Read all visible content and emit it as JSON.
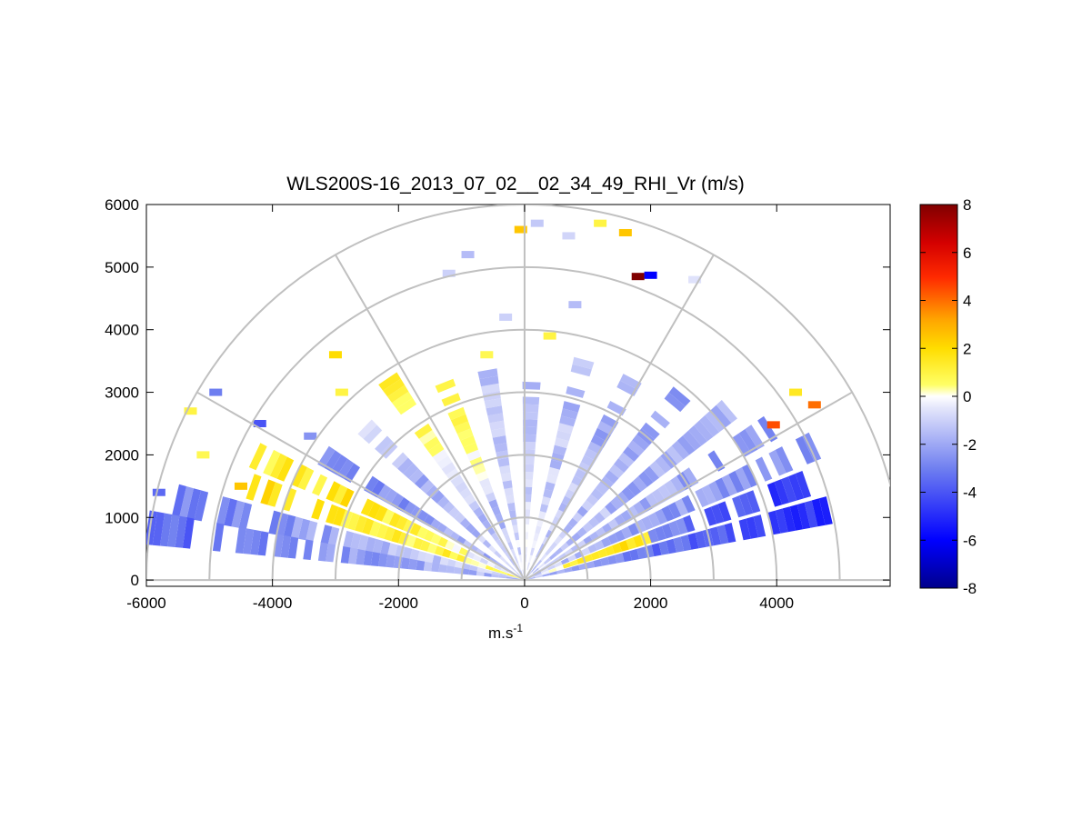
{
  "chart_data": {
    "type": "polar-rhi-heatmap",
    "title": "WLS200S-16_2013_07_02__02_34_49_RHI_Vr (m/s)",
    "xlabel": "m.s",
    "xlabel_superscript": "-1",
    "ylabel": "",
    "xlim": [
      -6000,
      5800
    ],
    "ylim": [
      -100,
      6000
    ],
    "x_ticks": [
      -6000,
      -4000,
      -2000,
      0,
      2000,
      4000
    ],
    "x_tick_labels": [
      "-6000",
      "-4000",
      "-2000",
      "0",
      "2000",
      "4000"
    ],
    "y_ticks": [
      0,
      1000,
      2000,
      3000,
      4000,
      5000,
      6000
    ],
    "y_tick_labels": [
      "0",
      "1000",
      "2000",
      "3000",
      "4000",
      "5000",
      "6000"
    ],
    "polar_grid": {
      "ring_radii": [
        1000,
        2000,
        3000,
        4000,
        5000,
        6000
      ],
      "spoke_angles_deg": [
        0,
        30,
        60,
        90,
        120,
        150,
        180
      ]
    },
    "colorbar": {
      "range": [
        -8,
        8
      ],
      "ticks": [
        -8,
        -6,
        -4,
        -2,
        0,
        2,
        4,
        6,
        8
      ],
      "tick_labels": [
        "-8",
        "-6",
        "-4",
        "-2",
        "0",
        "2",
        "4",
        "6",
        "8"
      ],
      "colors": [
        "#00008b",
        "#0000ff",
        "#6e7ef0",
        "#ffffff",
        "#ffff00",
        "#ffa500",
        "#ff0000",
        "#800000"
      ]
    },
    "beams": [
      {
        "angle_deg": 13,
        "r_start": 50,
        "r_end": 4900,
        "vr_profile": [
          -1.5,
          -3,
          -4,
          -5
        ]
      },
      {
        "angle_deg": 19,
        "r_start": 50,
        "r_end": 2100,
        "vr_profile": [
          -1,
          1,
          1.5,
          1.5
        ]
      },
      {
        "angle_deg": 19,
        "r_start": 2100,
        "r_end": 4800,
        "vr_profile": [
          -2.5,
          -3.5,
          -4.5,
          -4
        ]
      },
      {
        "angle_deg": 25,
        "r_start": 50,
        "r_end": 5200,
        "vr_profile": [
          -1,
          -2,
          -2.5,
          -3
        ]
      },
      {
        "angle_deg": 32,
        "r_start": 50,
        "r_end": 4500,
        "vr_profile": [
          -1,
          -1.5,
          -2,
          -2.5
        ]
      },
      {
        "angle_deg": 40,
        "r_start": 50,
        "r_end": 4200,
        "vr_profile": [
          -1,
          -1.5,
          -2,
          -2
        ]
      },
      {
        "angle_deg": 50,
        "r_start": 50,
        "r_end": 3900,
        "vr_profile": [
          -1,
          -1.5,
          -2,
          -2
        ]
      },
      {
        "angle_deg": 62,
        "r_start": 50,
        "r_end": 3700,
        "vr_profile": [
          -0.8,
          -1.2,
          -1.8,
          -2
        ]
      },
      {
        "angle_deg": 75,
        "r_start": 50,
        "r_end": 3600,
        "vr_profile": [
          -0.6,
          -1,
          -1.4,
          -1.5
        ]
      },
      {
        "angle_deg": 88,
        "r_start": 50,
        "r_end": 3400,
        "vr_profile": [
          -0.5,
          -0.8,
          -1,
          -1.2
        ]
      },
      {
        "angle_deg": 100,
        "r_start": 50,
        "r_end": 3300,
        "vr_profile": [
          -0.6,
          -1,
          -1.3,
          -1.5
        ]
      },
      {
        "angle_deg": 112,
        "r_start": 50,
        "r_end": 3400,
        "vr_profile": [
          -1,
          -1.5,
          0.6,
          0.8
        ]
      },
      {
        "angle_deg": 124,
        "r_start": 50,
        "r_end": 3800,
        "vr_profile": [
          -1,
          -1.5,
          0.8,
          1
        ]
      },
      {
        "angle_deg": 136,
        "r_start": 50,
        "r_end": 3500,
        "vr_profile": [
          -1,
          -1.5,
          -2,
          -1
        ]
      },
      {
        "angle_deg": 148,
        "r_start": 50,
        "r_end": 3700,
        "vr_profile": [
          -1.5,
          -2,
          -2.5,
          -3
        ]
      },
      {
        "angle_deg": 155,
        "r_start": 50,
        "r_end": 4700,
        "vr_profile": [
          -1,
          1,
          1.5,
          1
        ]
      },
      {
        "angle_deg": 161,
        "r_start": 50,
        "r_end": 4600,
        "vr_profile": [
          0.5,
          1,
          1.5,
          2
        ]
      },
      {
        "angle_deg": 167,
        "r_start": 50,
        "r_end": 6000,
        "vr_profile": [
          -1,
          -1.5,
          -2.5,
          -3
        ]
      },
      {
        "angle_deg": 172,
        "r_start": 50,
        "r_end": 6000,
        "vr_profile": [
          -1.5,
          -2,
          -3,
          -3.5
        ]
      }
    ],
    "scatter_cells": [
      {
        "x": -60,
        "y": 5600,
        "vr": 2.5
      },
      {
        "x": 1600,
        "y": 5550,
        "vr": 2.5
      },
      {
        "x": 1200,
        "y": 5700,
        "vr": 1.0
      },
      {
        "x": 1800,
        "y": 4850,
        "vr": 8.0
      },
      {
        "x": 2000,
        "y": 4870,
        "vr": -6.0
      },
      {
        "x": 4300,
        "y": 3000,
        "vr": 1.5
      },
      {
        "x": 4600,
        "y": 2800,
        "vr": 4.0
      },
      {
        "x": 3950,
        "y": 2480,
        "vr": 4.5
      },
      {
        "x": -3000,
        "y": 3600,
        "vr": 2.0
      },
      {
        "x": -2900,
        "y": 3000,
        "vr": 1.0
      },
      {
        "x": -4500,
        "y": 1500,
        "vr": 2.5
      },
      {
        "x": -5300,
        "y": 2700,
        "vr": 1.0
      },
      {
        "x": -5100,
        "y": 2000,
        "vr": 0.8
      },
      {
        "x": -600,
        "y": 3600,
        "vr": 0.8
      },
      {
        "x": 400,
        "y": 3900,
        "vr": 1.0
      },
      {
        "x": 200,
        "y": 5700,
        "vr": -1.2
      },
      {
        "x": 700,
        "y": 5500,
        "vr": -0.9
      },
      {
        "x": -900,
        "y": 5200,
        "vr": -1.5
      },
      {
        "x": -1200,
        "y": 4900,
        "vr": -1.0
      },
      {
        "x": 2700,
        "y": 4800,
        "vr": -0.6
      },
      {
        "x": -4900,
        "y": 3000,
        "vr": -3.0
      },
      {
        "x": -4200,
        "y": 2500,
        "vr": -4.0
      },
      {
        "x": -3400,
        "y": 2300,
        "vr": -2.5
      },
      {
        "x": -5800,
        "y": 1400,
        "vr": -3.5
      },
      {
        "x": 800,
        "y": 4400,
        "vr": -1.5
      },
      {
        "x": -300,
        "y": 4200,
        "vr": -1.0
      }
    ]
  }
}
